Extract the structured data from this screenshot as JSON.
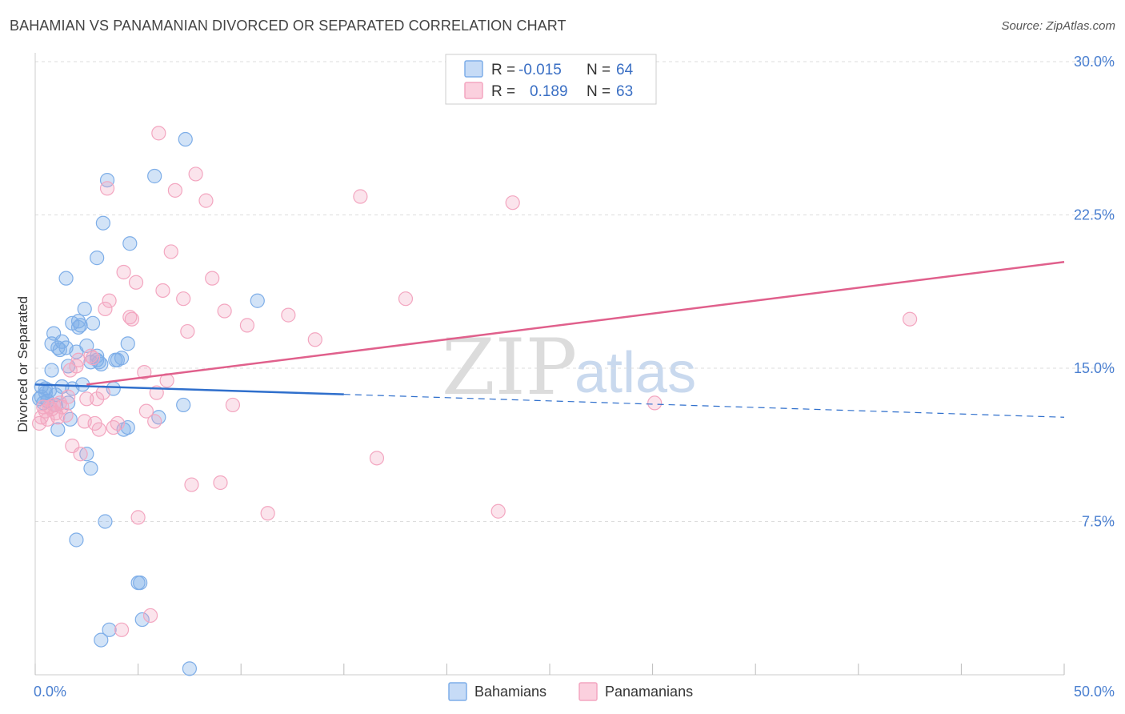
{
  "chart_data": {
    "type": "scatter",
    "title": "BAHAMIAN VS PANAMANIAN DIVORCED OR SEPARATED CORRELATION CHART",
    "source": "Source: ZipAtlas.com",
    "xlabel": "",
    "ylabel": "Divorced or Separated",
    "xlim": [
      0,
      50
    ],
    "ylim": [
      0,
      30
    ],
    "x_tick_labels": [
      "0.0%",
      "50.0%"
    ],
    "y_ticks": [
      7.5,
      15.0,
      22.5,
      30.0
    ],
    "y_tick_labels": [
      "7.5%",
      "15.0%",
      "22.5%",
      "30.0%"
    ],
    "grid": true,
    "watermark": {
      "zip": "ZIP",
      "atlas": "atlas"
    },
    "legend": {
      "rows": [
        {
          "r_label": "R =",
          "r_value": "-0.015",
          "n_label": "N =",
          "n_value": "64"
        },
        {
          "r_label": "R =",
          "r_value": "0.189",
          "n_label": "N =",
          "n_value": "63"
        }
      ]
    },
    "series": [
      {
        "name": "Bahamians",
        "color": "#7eaee8",
        "line_color": "#2f6fcc",
        "trend": {
          "x0": 0,
          "y0": 14.2,
          "x1": 50,
          "y1": 12.6,
          "solid_until": 15
        },
        "points": [
          [
            0.2,
            13.5
          ],
          [
            0.3,
            14.1
          ],
          [
            0.3,
            13.6
          ],
          [
            0.4,
            13.3
          ],
          [
            0.5,
            14.0
          ],
          [
            0.5,
            13.8
          ],
          [
            0.6,
            13.4
          ],
          [
            0.7,
            13.9
          ],
          [
            0.8,
            14.9
          ],
          [
            0.8,
            16.2
          ],
          [
            0.9,
            16.7
          ],
          [
            1.0,
            13.7
          ],
          [
            1.0,
            13.2
          ],
          [
            1.1,
            12.0
          ],
          [
            1.1,
            16.0
          ],
          [
            1.2,
            15.9
          ],
          [
            1.3,
            14.1
          ],
          [
            1.3,
            16.3
          ],
          [
            1.5,
            16.0
          ],
          [
            1.5,
            19.4
          ],
          [
            1.6,
            13.3
          ],
          [
            1.6,
            15.1
          ],
          [
            1.7,
            12.5
          ],
          [
            1.8,
            14.0
          ],
          [
            1.8,
            17.2
          ],
          [
            2.0,
            15.8
          ],
          [
            2.0,
            6.6
          ],
          [
            2.1,
            17.3
          ],
          [
            2.1,
            17.0
          ],
          [
            2.2,
            17.1
          ],
          [
            2.3,
            14.2
          ],
          [
            2.4,
            17.9
          ],
          [
            2.5,
            16.1
          ],
          [
            2.5,
            10.8
          ],
          [
            2.7,
            15.3
          ],
          [
            2.7,
            10.1
          ],
          [
            2.8,
            17.2
          ],
          [
            3.0,
            15.4
          ],
          [
            3.1,
            15.3
          ],
          [
            3.2,
            15.2
          ],
          [
            3.0,
            20.4
          ],
          [
            3.0,
            15.6
          ],
          [
            3.3,
            22.1
          ],
          [
            3.4,
            7.5
          ],
          [
            3.5,
            24.2
          ],
          [
            3.6,
            2.2
          ],
          [
            3.2,
            1.7
          ],
          [
            3.8,
            14.0
          ],
          [
            3.9,
            15.4
          ],
          [
            4.0,
            15.4
          ],
          [
            4.2,
            15.5
          ],
          [
            4.3,
            12.0
          ],
          [
            4.5,
            12.1
          ],
          [
            4.5,
            16.2
          ],
          [
            4.6,
            21.1
          ],
          [
            5.0,
            4.5
          ],
          [
            5.1,
            4.5
          ],
          [
            5.2,
            2.7
          ],
          [
            5.8,
            24.4
          ],
          [
            6.0,
            12.6
          ],
          [
            7.2,
            13.2
          ],
          [
            7.3,
            26.2
          ],
          [
            7.5,
            0.3
          ],
          [
            10.8,
            18.3
          ]
        ]
      },
      {
        "name": "Panamanians",
        "color": "#f3a6c0",
        "line_color": "#e0608c",
        "trend": {
          "x0": 2.5,
          "y0": 14.2,
          "x1": 50,
          "y1": 20.2,
          "solid_until": 50
        },
        "points": [
          [
            0.2,
            12.3
          ],
          [
            0.3,
            12.6
          ],
          [
            0.4,
            13.1
          ],
          [
            0.5,
            12.9
          ],
          [
            0.6,
            12.5
          ],
          [
            0.7,
            13.1
          ],
          [
            0.8,
            13.0
          ],
          [
            0.9,
            13.2
          ],
          [
            1.0,
            12.8
          ],
          [
            1.1,
            12.6
          ],
          [
            1.2,
            13.3
          ],
          [
            1.3,
            13.1
          ],
          [
            1.5,
            12.7
          ],
          [
            1.6,
            13.6
          ],
          [
            1.7,
            14.9
          ],
          [
            1.8,
            11.2
          ],
          [
            2.0,
            15.1
          ],
          [
            2.1,
            15.4
          ],
          [
            2.2,
            10.8
          ],
          [
            2.4,
            12.4
          ],
          [
            2.5,
            13.5
          ],
          [
            2.7,
            15.6
          ],
          [
            2.8,
            15.5
          ],
          [
            2.9,
            12.3
          ],
          [
            3.0,
            13.5
          ],
          [
            3.1,
            12.0
          ],
          [
            3.3,
            13.8
          ],
          [
            3.4,
            17.9
          ],
          [
            3.5,
            23.8
          ],
          [
            3.6,
            18.3
          ],
          [
            3.8,
            12.1
          ],
          [
            4.0,
            12.3
          ],
          [
            4.2,
            2.2
          ],
          [
            4.3,
            19.7
          ],
          [
            4.6,
            17.5
          ],
          [
            4.7,
            17.4
          ],
          [
            4.9,
            19.2
          ],
          [
            5.0,
            7.7
          ],
          [
            5.3,
            14.8
          ],
          [
            5.4,
            12.9
          ],
          [
            5.6,
            2.9
          ],
          [
            5.8,
            12.4
          ],
          [
            5.9,
            13.8
          ],
          [
            6.0,
            26.5
          ],
          [
            6.2,
            18.8
          ],
          [
            6.4,
            14.4
          ],
          [
            6.6,
            20.7
          ],
          [
            6.8,
            23.7
          ],
          [
            7.2,
            18.4
          ],
          [
            7.4,
            16.8
          ],
          [
            7.6,
            9.3
          ],
          [
            7.8,
            24.5
          ],
          [
            8.3,
            23.2
          ],
          [
            8.6,
            19.4
          ],
          [
            9.0,
            9.4
          ],
          [
            9.2,
            17.8
          ],
          [
            9.6,
            13.2
          ],
          [
            10.3,
            17.1
          ],
          [
            11.3,
            7.9
          ],
          [
            12.3,
            17.6
          ],
          [
            13.6,
            16.4
          ],
          [
            15.8,
            23.4
          ],
          [
            18.0,
            18.4
          ]
        ],
        "extra_points": [
          [
            16.6,
            10.6
          ],
          [
            23.2,
            23.1
          ],
          [
            22.5,
            8.0
          ],
          [
            30.1,
            13.3
          ],
          [
            42.5,
            17.4
          ]
        ]
      }
    ]
  }
}
